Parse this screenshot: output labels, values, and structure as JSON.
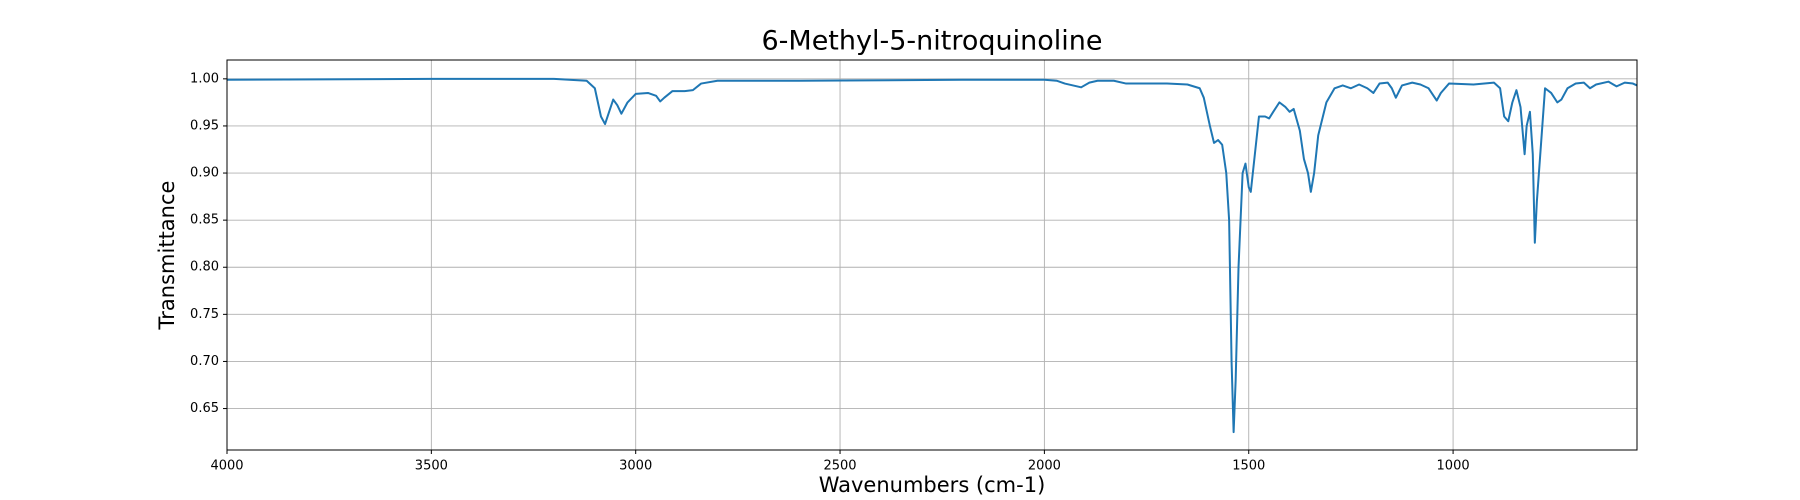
{
  "chart_data": {
    "type": "line",
    "title": "6-Methyl-5-nitroquinoline",
    "x_label": "Wavenumbers (cm-1)",
    "y_label": "Transmittance",
    "x": [
      4000,
      3500,
      3200,
      3120,
      3100,
      3085,
      3075,
      3065,
      3055,
      3045,
      3035,
      3020,
      3000,
      2970,
      2950,
      2940,
      2930,
      2910,
      2880,
      2860,
      2840,
      2800,
      2600,
      2200,
      2000,
      1970,
      1950,
      1930,
      1910,
      1890,
      1870,
      1830,
      1800,
      1760,
      1700,
      1650,
      1620,
      1610,
      1595,
      1585,
      1575,
      1565,
      1555,
      1548,
      1542,
      1537,
      1532,
      1525,
      1515,
      1508,
      1500,
      1495,
      1485,
      1475,
      1460,
      1450,
      1440,
      1425,
      1410,
      1400,
      1390,
      1375,
      1365,
      1355,
      1348,
      1340,
      1330,
      1310,
      1290,
      1270,
      1250,
      1230,
      1210,
      1195,
      1180,
      1160,
      1150,
      1140,
      1125,
      1100,
      1080,
      1060,
      1040,
      1030,
      1010,
      950,
      900,
      885,
      875,
      865,
      855,
      845,
      835,
      825,
      820,
      812,
      805,
      800,
      795,
      785,
      775,
      760,
      745,
      735,
      720,
      700,
      680,
      665,
      650,
      620,
      600,
      580,
      560,
      550
    ],
    "series": [
      {
        "name": "Transmittance",
        "color": "#1f77b4",
        "values": [
          0.999,
          1.0,
          1.0,
          0.998,
          0.99,
          0.96,
          0.952,
          0.965,
          0.978,
          0.972,
          0.963,
          0.975,
          0.984,
          0.985,
          0.982,
          0.976,
          0.98,
          0.987,
          0.987,
          0.988,
          0.995,
          0.998,
          0.998,
          0.999,
          0.999,
          0.998,
          0.995,
          0.993,
          0.991,
          0.996,
          0.998,
          0.998,
          0.995,
          0.995,
          0.995,
          0.994,
          0.99,
          0.98,
          0.95,
          0.932,
          0.935,
          0.93,
          0.9,
          0.85,
          0.7,
          0.625,
          0.68,
          0.8,
          0.9,
          0.91,
          0.885,
          0.88,
          0.92,
          0.96,
          0.96,
          0.958,
          0.965,
          0.975,
          0.97,
          0.965,
          0.968,
          0.945,
          0.915,
          0.9,
          0.88,
          0.9,
          0.94,
          0.975,
          0.99,
          0.993,
          0.99,
          0.994,
          0.99,
          0.985,
          0.995,
          0.996,
          0.99,
          0.98,
          0.993,
          0.996,
          0.994,
          0.99,
          0.977,
          0.985,
          0.995,
          0.994,
          0.996,
          0.99,
          0.96,
          0.955,
          0.975,
          0.988,
          0.97,
          0.92,
          0.95,
          0.965,
          0.92,
          0.826,
          0.87,
          0.93,
          0.99,
          0.985,
          0.975,
          0.978,
          0.99,
          0.995,
          0.996,
          0.99,
          0.994,
          0.997,
          0.992,
          0.996,
          0.995,
          0.993
        ]
      }
    ],
    "xlim": [
      4000,
      550
    ],
    "xticks": [
      4000,
      3500,
      3000,
      2500,
      2000,
      1500,
      1000
    ],
    "ylim": [
      0.606,
      1.02
    ],
    "yticks": [
      0.65,
      {
        "value": 0.7,
        "label": "0.70"
      },
      0.75,
      {
        "value": 0.8,
        "label": "0.80"
      },
      0.85,
      {
        "value": 0.9,
        "label": "0.90"
      },
      0.95,
      {
        "value": 1.0,
        "label": "1.00"
      }
    ],
    "grid": true
  }
}
